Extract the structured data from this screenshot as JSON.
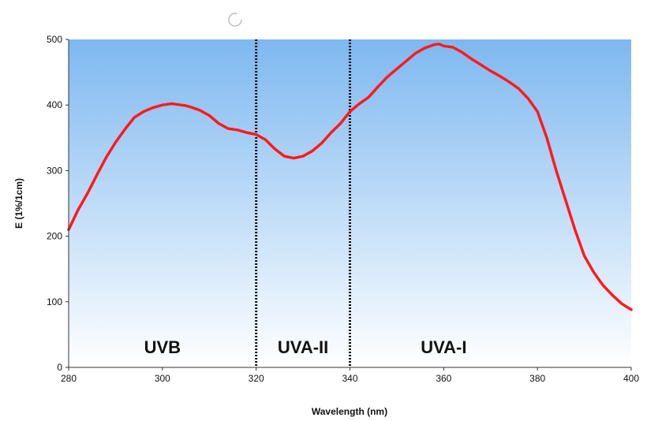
{
  "chart_data": {
    "type": "line",
    "xlabel": "Wavelength (nm)",
    "ylabel": "E (1%/1cm)",
    "xlim": [
      280,
      400
    ],
    "ylim": [
      0,
      500
    ],
    "x_ticks": [
      280,
      300,
      320,
      340,
      360,
      380,
      400
    ],
    "x_tick_labels": [
      "280",
      "300",
      "320",
      "340",
      "360",
      "380",
      "400"
    ],
    "y_ticks": [
      0,
      100,
      200,
      300,
      400,
      500
    ],
    "y_tick_labels": [
      "0",
      "100",
      "200",
      "300",
      "400",
      "500"
    ],
    "grid": false,
    "colors": {
      "line": "#ff1a1a",
      "bg_top": "#7eb8f0",
      "bg_bottom": "#ffffff"
    },
    "region_dividers": [
      320,
      340
    ],
    "bands": [
      {
        "label": "UVB",
        "x": 300
      },
      {
        "label": "UVA-II",
        "x": 330
      },
      {
        "label": "UVA-I",
        "x": 360
      }
    ],
    "series": [
      {
        "x": [
          280,
          282,
          284,
          286,
          288,
          290,
          292,
          294,
          296,
          298,
          300,
          302,
          304,
          305,
          306,
          308,
          310,
          312,
          314,
          316,
          318,
          320,
          322,
          324,
          326,
          328,
          330,
          332,
          334,
          336,
          338,
          340,
          342,
          344,
          346,
          348,
          350,
          352,
          354,
          356,
          358,
          359,
          360,
          362,
          364,
          366,
          368,
          370,
          372,
          374,
          376,
          378,
          380,
          382,
          384,
          386,
          388,
          390,
          392,
          394,
          396,
          398,
          400
        ],
        "y": [
          210,
          240,
          265,
          293,
          320,
          343,
          363,
          381,
          390,
          396,
          400,
          402,
          400,
          399,
          397,
          392,
          384,
          372,
          364,
          362,
          358,
          355,
          347,
          333,
          322,
          319,
          322,
          330,
          342,
          358,
          372,
          390,
          402,
          412,
          428,
          443,
          455,
          467,
          479,
          487,
          492,
          493,
          490,
          488,
          480,
          470,
          461,
          452,
          444,
          435,
          425,
          410,
          390,
          350,
          300,
          255,
          210,
          170,
          145,
          125,
          110,
          97,
          88
        ]
      }
    ]
  },
  "ui": {
    "busy_icon": "loading-spinner-icon"
  }
}
